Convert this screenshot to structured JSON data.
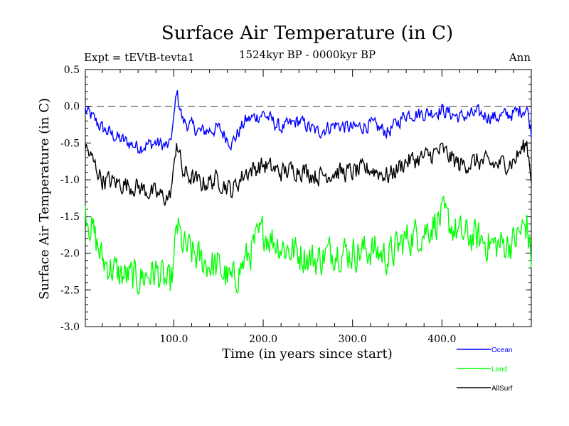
{
  "chart_data": {
    "type": "line",
    "title": "Surface Air Temperature (in C)",
    "subtitle_left": "Expt = tEVtB-tevta1",
    "subtitle_center": "1524kyr BP - 0000kyr BP",
    "subtitle_right": "Ann",
    "xlabel": "Time (in years since start)",
    "ylabel": "Surface Air Temperature (in C)",
    "xlim": [
      1,
      500
    ],
    "ylim": [
      -3.0,
      0.5
    ],
    "x_ticks": [
      100,
      200,
      300,
      400
    ],
    "x_tick_labels": [
      "100.0",
      "200.0",
      "300.0",
      "400.0"
    ],
    "y_ticks": [
      -3.0,
      -2.5,
      -2.0,
      -1.5,
      -1.0,
      -0.5,
      0.0,
      0.5
    ],
    "y_tick_labels": [
      "-3.0",
      "-2.5",
      "-2.0",
      "-1.5",
      "-1.0",
      "-0.5",
      "0.0",
      "0.5"
    ],
    "reference_line": 0.0,
    "series": [
      {
        "name": "Ocean",
        "color": "#0000ff",
        "x": [
          1,
          20,
          40,
          60,
          80,
          95,
          100,
          103,
          110,
          130,
          150,
          165,
          180,
          200,
          220,
          240,
          260,
          280,
          300,
          320,
          340,
          360,
          380,
          400,
          420,
          440,
          460,
          480,
          495,
          500
        ],
        "values": [
          -0.05,
          -0.3,
          -0.45,
          -0.55,
          -0.5,
          -0.55,
          -0.2,
          0.22,
          -0.2,
          -0.35,
          -0.3,
          -0.5,
          -0.2,
          -0.1,
          -0.3,
          -0.2,
          -0.35,
          -0.25,
          -0.3,
          -0.25,
          -0.35,
          -0.1,
          -0.1,
          -0.05,
          -0.15,
          -0.1,
          -0.15,
          -0.1,
          -0.02,
          -0.35
        ]
      },
      {
        "name": "Land",
        "color": "#00ff00",
        "x": [
          1,
          20,
          40,
          60,
          80,
          95,
          100,
          103,
          110,
          130,
          150,
          165,
          180,
          200,
          220,
          240,
          260,
          280,
          300,
          320,
          340,
          360,
          380,
          400,
          420,
          440,
          460,
          480,
          495,
          500
        ],
        "values": [
          -1.4,
          -2.1,
          -2.3,
          -2.35,
          -2.25,
          -2.45,
          -2.2,
          -1.6,
          -1.9,
          -2.1,
          -2.2,
          -2.4,
          -2.1,
          -1.7,
          -1.9,
          -2.0,
          -2.1,
          -1.95,
          -2.0,
          -1.95,
          -2.05,
          -1.8,
          -1.7,
          -1.5,
          -1.75,
          -1.8,
          -1.9,
          -1.85,
          -1.6,
          -2.1
        ]
      },
      {
        "name": "AllSurf",
        "color": "#000000",
        "x": [
          1,
          20,
          40,
          60,
          80,
          95,
          100,
          103,
          110,
          130,
          150,
          165,
          180,
          200,
          220,
          240,
          260,
          280,
          300,
          320,
          340,
          360,
          380,
          400,
          420,
          440,
          460,
          480,
          495,
          500
        ],
        "values": [
          -0.55,
          -1.0,
          -1.05,
          -1.1,
          -1.2,
          -1.25,
          -0.9,
          -0.45,
          -0.9,
          -1.05,
          -1.0,
          -1.15,
          -0.9,
          -0.8,
          -0.9,
          -0.85,
          -0.95,
          -0.9,
          -0.9,
          -0.85,
          -0.95,
          -0.75,
          -0.7,
          -0.6,
          -0.8,
          -0.75,
          -0.8,
          -0.75,
          -0.5,
          -0.95
        ]
      }
    ],
    "legend": [
      "Ocean",
      "Land",
      "AllSurf"
    ]
  }
}
